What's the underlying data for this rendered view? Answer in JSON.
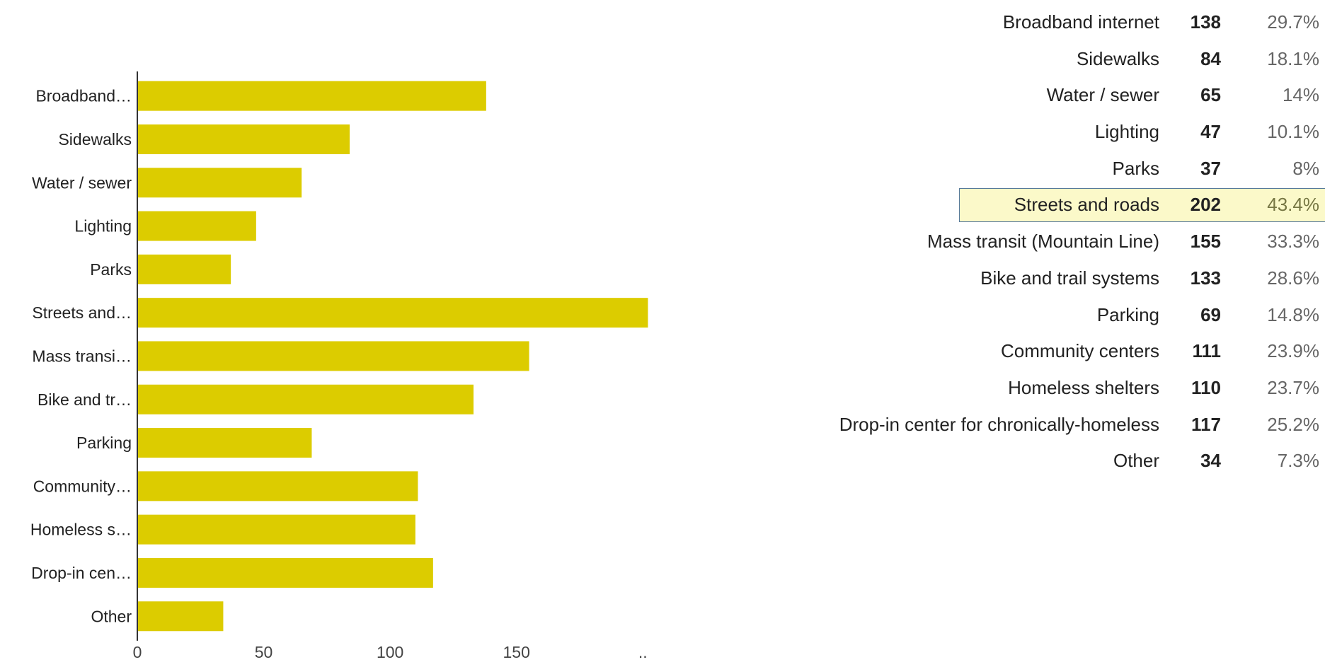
{
  "colors": {
    "bar": "#dccc00",
    "axis": "#333333",
    "highlight_bg": "#fbf9c9",
    "highlight_border": "#567a9a"
  },
  "chart_data": {
    "type": "bar",
    "orientation": "horizontal",
    "categories": [
      "Broadband…",
      "Sidewalks",
      "Water / sewer",
      "Lighting",
      "Parks",
      "Streets and…",
      "Mass transi…",
      "Bike and tr…",
      "Parking",
      "Community…",
      "Homeless s…",
      "Drop-in cen…",
      "Other"
    ],
    "values": [
      138,
      84,
      65,
      47,
      37,
      202,
      155,
      133,
      69,
      111,
      110,
      117,
      34
    ],
    "xlim": [
      0,
      210
    ],
    "xticks": [
      "0",
      "50",
      "100",
      "150",
      ".."
    ],
    "xtick_values": [
      0,
      50,
      100,
      150,
      200
    ],
    "grid": false,
    "legend": "none"
  },
  "summary": {
    "rows": [
      {
        "label": "Broadband internet",
        "count": "138",
        "percent": "29.7%",
        "highlight": false
      },
      {
        "label": "Sidewalks",
        "count": "84",
        "percent": "18.1%",
        "highlight": false
      },
      {
        "label": "Water / sewer",
        "count": "65",
        "percent": "14%",
        "highlight": false
      },
      {
        "label": "Lighting",
        "count": "47",
        "percent": "10.1%",
        "highlight": false
      },
      {
        "label": "Parks",
        "count": "37",
        "percent": "8%",
        "highlight": false
      },
      {
        "label": "Streets and roads",
        "count": "202",
        "percent": "43.4%",
        "highlight": true
      },
      {
        "label": "Mass transit (Mountain Line)",
        "count": "155",
        "percent": "33.3%",
        "highlight": false
      },
      {
        "label": "Bike and trail systems",
        "count": "133",
        "percent": "28.6%",
        "highlight": false
      },
      {
        "label": "Parking",
        "count": "69",
        "percent": "14.8%",
        "highlight": false
      },
      {
        "label": "Community centers",
        "count": "111",
        "percent": "23.9%",
        "highlight": false
      },
      {
        "label": "Homeless shelters",
        "count": "110",
        "percent": "23.7%",
        "highlight": false
      },
      {
        "label": "Drop-in center for chronically-homeless",
        "count": "117",
        "percent": "25.2%",
        "highlight": false
      },
      {
        "label": "Other",
        "count": "34",
        "percent": "7.3%",
        "highlight": false
      }
    ]
  }
}
